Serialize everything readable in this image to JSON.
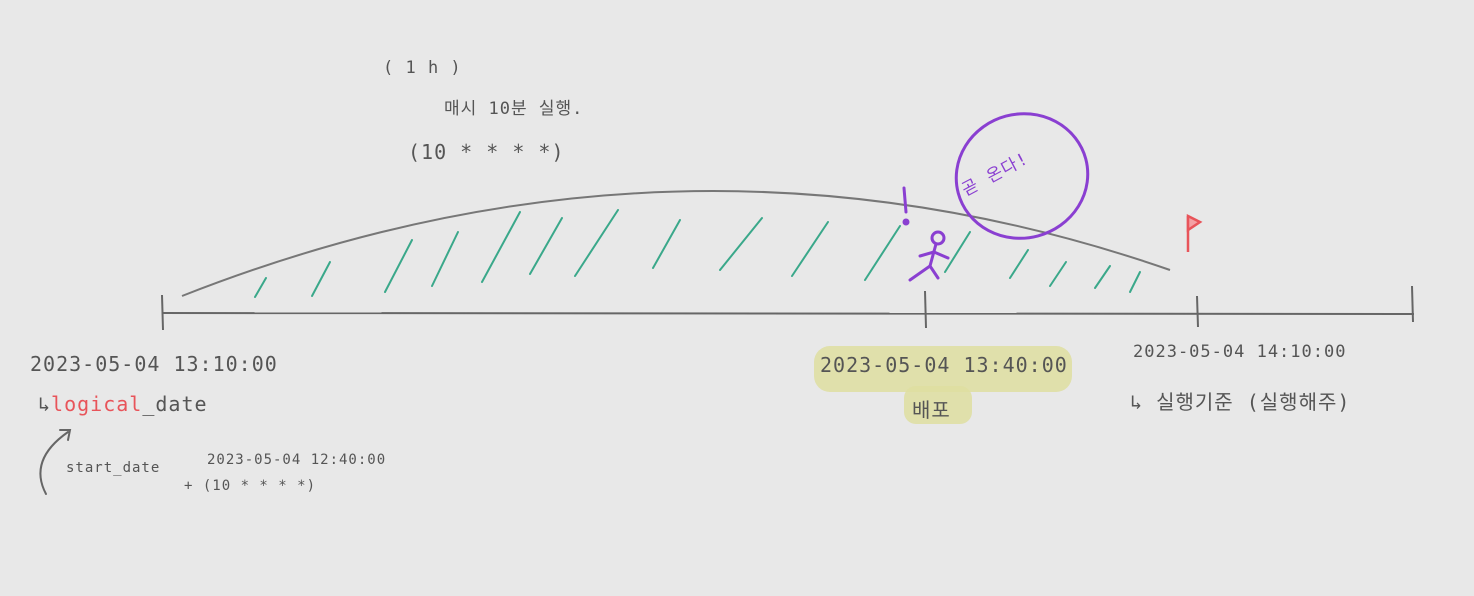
{
  "schedule": {
    "interval": "( 1 h )",
    "description": "매시 10분 실행.",
    "cron": "(10 * * * *)"
  },
  "timeline": {
    "point1": {
      "datetime": "2023-05-04 13:10:00",
      "arrow": "↳",
      "label_highlight": "logical",
      "label_rest": "_date"
    },
    "point2": {
      "datetime": "2023-05-04 13:40:00",
      "label": "배포"
    },
    "point3": {
      "datetime": "2023-05-04 14:10:00",
      "arrow": "↳",
      "label": "실행기준 (실행해주)"
    }
  },
  "start_note": {
    "label": "start_date",
    "datetime": "2023-05-04 12:40:00",
    "cron": "+ (10 * * * *)"
  },
  "bubble": {
    "text": "곧 온다!",
    "mark": "!"
  },
  "colors": {
    "background": "#e8e8e8",
    "axis": "#666666",
    "hatch": "#3aa88a",
    "purple": "#8a3fd1",
    "red": "#e8545a",
    "highlight": "#dede a0"
  },
  "icons": [
    "stick-figure-icon",
    "red-flag-icon",
    "curved-arrow-icon"
  ]
}
